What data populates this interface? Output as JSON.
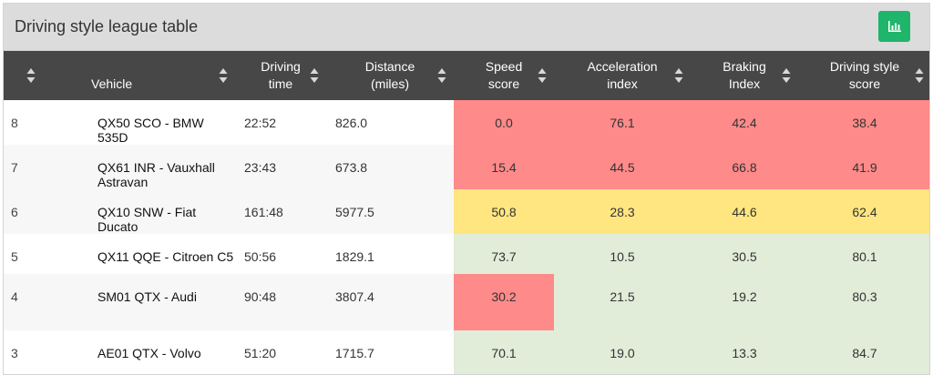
{
  "panel": {
    "title": "Driving style league table",
    "chart_button_icon": "bar-chart-icon",
    "chart_button_color": "#1fb56a"
  },
  "columns": [
    {
      "key": "rank",
      "label": ""
    },
    {
      "key": "vehicle",
      "label": "Vehicle"
    },
    {
      "key": "driving_time",
      "label": "Driving\ntime"
    },
    {
      "key": "distance",
      "label": "Distance\n(miles)"
    },
    {
      "key": "speed",
      "label": "Speed\nscore"
    },
    {
      "key": "acceleration",
      "label": "Acceleration\nindex"
    },
    {
      "key": "braking",
      "label": "Braking\nIndex"
    },
    {
      "key": "driving_style",
      "label": "Driving style\nscore"
    }
  ],
  "rows": [
    {
      "rank": "8",
      "vehicle": "QX50 SCO - BMW 535D",
      "driving_time": "22:52",
      "distance": "826.0",
      "speed": "0.0",
      "acceleration": "76.1",
      "braking": "42.4",
      "driving_style": "38.4"
    },
    {
      "rank": "7",
      "vehicle": "QX61 INR - Vauxhall Astravan",
      "driving_time": "23:43",
      "distance": "673.8",
      "speed": "15.4",
      "acceleration": "44.5",
      "braking": "66.8",
      "driving_style": "41.9"
    },
    {
      "rank": "6",
      "vehicle": "QX10 SNW - Fiat Ducato",
      "driving_time": "161:48",
      "distance": "5977.5",
      "speed": "50.8",
      "acceleration": "28.3",
      "braking": "44.6",
      "driving_style": "62.4"
    },
    {
      "rank": "5",
      "vehicle": "QX11 QQE - Citroen C5",
      "driving_time": "50:56",
      "distance": "1829.1",
      "speed": "73.7",
      "acceleration": "10.5",
      "braking": "30.5",
      "driving_style": "80.1"
    },
    {
      "rank": "4",
      "vehicle": "SM01 QTX - Audi",
      "driving_time": "90:48",
      "distance": "3807.4",
      "speed": "30.2",
      "acceleration": "21.5",
      "braking": "19.2",
      "driving_style": "80.3"
    },
    {
      "rank": "3",
      "vehicle": "AE01 QTX - Volvo",
      "driving_time": "51:20",
      "distance": "1715.7",
      "speed": "70.1",
      "acceleration": "19.0",
      "braking": "13.3",
      "driving_style": "84.7"
    }
  ],
  "colors": {
    "header_bg": "#474747",
    "red": "#ff8a8a",
    "yellow": "#ffe680",
    "green": "#e1ecd9"
  }
}
